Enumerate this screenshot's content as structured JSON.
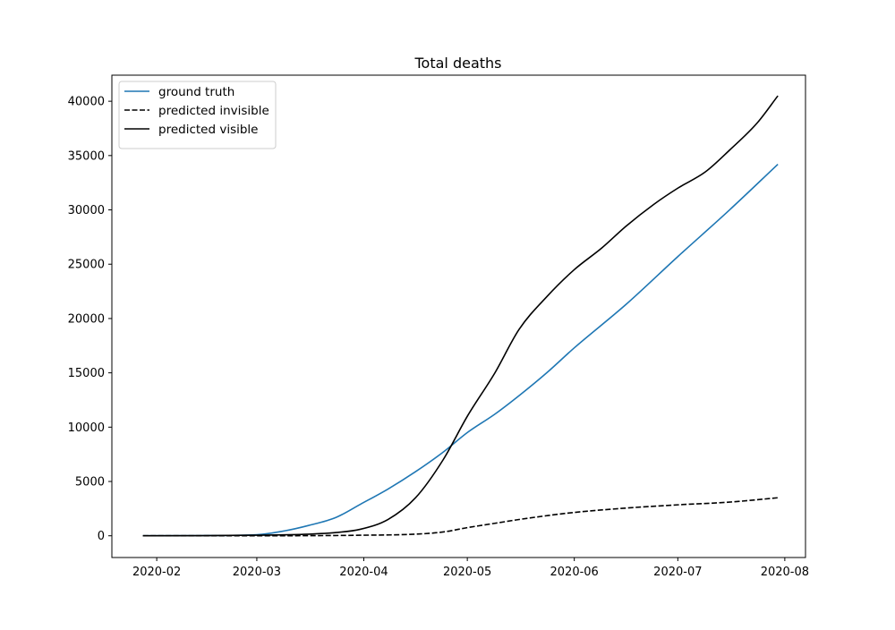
{
  "chart_data": {
    "type": "line",
    "title": "Total deaths",
    "xlabel": "",
    "ylabel": "",
    "x_tick_labels": [
      "2020-02",
      "2020-03",
      "2020-04",
      "2020-05",
      "2020-06",
      "2020-07",
      "2020-08"
    ],
    "x_tick_dates": [
      "2020-02-01",
      "2020-03-01",
      "2020-04-01",
      "2020-05-01",
      "2020-06-01",
      "2020-07-01",
      "2020-08-01"
    ],
    "xlim": [
      "2020-01-19",
      "2020-08-07"
    ],
    "y_ticks": [
      0,
      5000,
      10000,
      15000,
      20000,
      25000,
      30000,
      35000,
      40000
    ],
    "ylim": [
      -2000,
      42400
    ],
    "grid": false,
    "legend_position": "top-left",
    "series": [
      {
        "name": "ground truth",
        "color": "#1f77b4",
        "dash": "solid",
        "x": [
          "2020-01-28",
          "2020-02-15",
          "2020-03-01",
          "2020-03-09",
          "2020-03-16",
          "2020-03-24",
          "2020-03-31",
          "2020-04-08",
          "2020-04-16",
          "2020-04-24",
          "2020-05-01",
          "2020-05-09",
          "2020-05-16",
          "2020-05-24",
          "2020-06-01",
          "2020-06-16",
          "2020-07-01",
          "2020-07-16",
          "2020-07-30"
        ],
        "y": [
          0,
          20,
          100,
          450,
          950,
          1700,
          2900,
          4300,
          5900,
          7700,
          9500,
          11200,
          12900,
          15000,
          17300,
          21300,
          25700,
          30000,
          34200
        ]
      },
      {
        "name": "predicted invisible",
        "color": "#000000",
        "dash": "dashed",
        "x": [
          "2020-01-28",
          "2020-03-01",
          "2020-03-31",
          "2020-04-16",
          "2020-04-24",
          "2020-05-01",
          "2020-05-09",
          "2020-05-16",
          "2020-05-24",
          "2020-06-01",
          "2020-06-16",
          "2020-07-01",
          "2020-07-16",
          "2020-07-30"
        ],
        "y": [
          0,
          0,
          50,
          150,
          350,
          750,
          1150,
          1500,
          1850,
          2150,
          2550,
          2850,
          3100,
          3500
        ]
      },
      {
        "name": "predicted visible",
        "color": "#000000",
        "dash": "solid",
        "x": [
          "2020-01-28",
          "2020-03-01",
          "2020-03-16",
          "2020-03-24",
          "2020-03-31",
          "2020-04-08",
          "2020-04-16",
          "2020-04-24",
          "2020-05-01",
          "2020-05-09",
          "2020-05-16",
          "2020-05-24",
          "2020-06-01",
          "2020-06-09",
          "2020-06-16",
          "2020-06-24",
          "2020-07-01",
          "2020-07-09",
          "2020-07-16",
          "2020-07-24",
          "2020-07-30"
        ],
        "y": [
          0,
          50,
          150,
          300,
          600,
          1500,
          3500,
          7000,
          11000,
          15000,
          19000,
          22000,
          24500,
          26500,
          28500,
          30500,
          32000,
          33500,
          35500,
          38000,
          40500
        ]
      }
    ]
  }
}
